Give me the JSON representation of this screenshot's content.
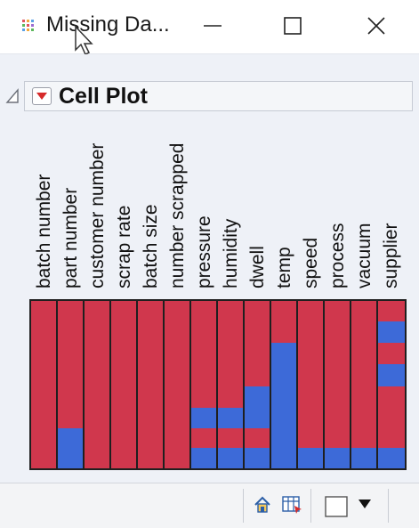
{
  "window": {
    "title": "Missing Da...",
    "icon": "data-table-icon",
    "controls": [
      "minimize-icon",
      "maximize-icon",
      "close-icon"
    ]
  },
  "report": {
    "outline_title": "Cell Plot",
    "outline_menu_icon": "red-triangle-menu-icon",
    "disclosure_icon": "disclosure-triangle-icon"
  },
  "colors": {
    "not_missing": "#d0374d",
    "missing": "#3d6ad8",
    "accent": "#d0374d"
  },
  "chart_data": {
    "type": "heatmap",
    "columns": [
      "batch number",
      "part number",
      "customer number",
      "scrap rate",
      "batch size",
      "number scrapped",
      "pressure",
      "humidity",
      "dwell",
      "temp",
      "speed",
      "process",
      "vacuum",
      "supplier"
    ],
    "row_fraction_start_at_top": true,
    "missing_fraction_ranges": {
      "batch number": [],
      "part number": [
        [
          0.76,
          1.0
        ]
      ],
      "customer number": [],
      "scrap rate": [],
      "batch size": [],
      "number scrapped": [],
      "pressure": [
        [
          0.64,
          0.76
        ],
        [
          0.88,
          1.0
        ]
      ],
      "humidity": [
        [
          0.64,
          0.76
        ],
        [
          0.88,
          1.0
        ]
      ],
      "dwell": [
        [
          0.51,
          0.76
        ],
        [
          0.88,
          1.0
        ]
      ],
      "temp": [
        [
          0.25,
          1.0
        ]
      ],
      "speed": [
        [
          0.88,
          1.0
        ]
      ],
      "process": [
        [
          0.88,
          1.0
        ]
      ],
      "vacuum": [
        [
          0.88,
          1.0
        ]
      ],
      "supplier": [
        [
          0.12,
          0.25
        ],
        [
          0.38,
          0.51
        ],
        [
          0.88,
          1.0
        ]
      ]
    }
  },
  "statusbar": {
    "icons": [
      "home-icon",
      "table-view-icon",
      "window-square-icon",
      "dropdown-arrow-icon"
    ]
  }
}
